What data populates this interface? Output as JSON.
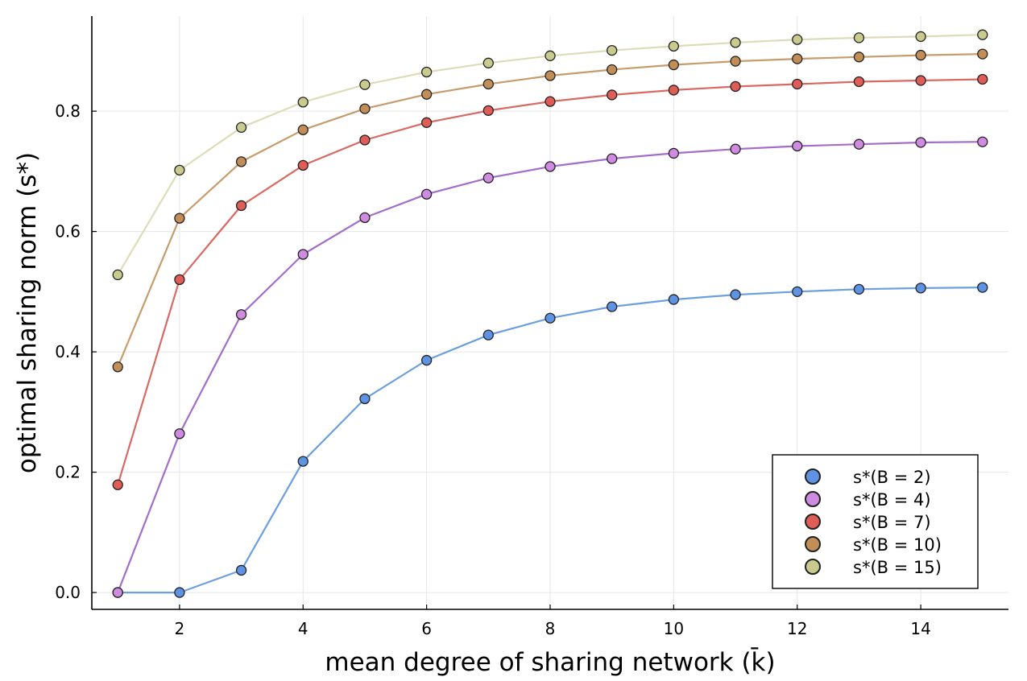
{
  "chart_data": {
    "type": "scatter",
    "title": "",
    "xlabel": "mean degree of sharing network (k̄)",
    "ylabel": "optimal sharing norm (s*)",
    "xlim": [
      0.58,
      15.42
    ],
    "ylim": [
      -0.028,
      0.958
    ],
    "x_ticks": [
      2,
      4,
      6,
      8,
      10,
      12,
      14
    ],
    "x_tick_labels": [
      "2",
      "4",
      "6",
      "8",
      "10",
      "12",
      "14"
    ],
    "y_ticks": [
      0.0,
      0.2,
      0.4,
      0.6,
      0.8
    ],
    "y_tick_labels": [
      "0.0",
      "0.2",
      "0.4",
      "0.6",
      "0.8"
    ],
    "grid": true,
    "legend_position": "bottom-right",
    "x": [
      1,
      2,
      3,
      4,
      5,
      6,
      7,
      8,
      9,
      10,
      11,
      12,
      13,
      14,
      15
    ],
    "series": [
      {
        "name": "s*(B = 2)",
        "color": "#6C9FE0",
        "marker_color": "#5E93E3",
        "values": [
          0.0,
          0.0,
          0.037,
          0.218,
          0.322,
          0.386,
          0.428,
          0.456,
          0.475,
          0.487,
          0.495,
          0.5,
          0.504,
          0.506,
          0.507
        ]
      },
      {
        "name": "s*(B = 4)",
        "color": "#A36DC9",
        "marker_color": "#CF8BE0",
        "values": [
          0.0,
          0.264,
          0.462,
          0.562,
          0.623,
          0.662,
          0.689,
          0.708,
          0.721,
          0.73,
          0.737,
          0.742,
          0.745,
          0.748,
          0.749
        ]
      },
      {
        "name": "s*(B = 7)",
        "color": "#D86A63",
        "marker_color": "#DE5D57",
        "values": [
          0.179,
          0.52,
          0.643,
          0.71,
          0.752,
          0.781,
          0.801,
          0.816,
          0.827,
          0.835,
          0.841,
          0.845,
          0.849,
          0.851,
          0.853
        ]
      },
      {
        "name": "s*(B = 10)",
        "color": "#C79C6C",
        "marker_color": "#C28E57",
        "values": [
          0.375,
          0.622,
          0.716,
          0.769,
          0.804,
          0.828,
          0.845,
          0.859,
          0.869,
          0.877,
          0.883,
          0.887,
          0.89,
          0.893,
          0.895
        ]
      },
      {
        "name": "s*(B = 15)",
        "color": "#DCDDB8",
        "marker_color": "#C9CB8E",
        "values": [
          0.528,
          0.702,
          0.773,
          0.815,
          0.844,
          0.865,
          0.88,
          0.892,
          0.901,
          0.908,
          0.914,
          0.919,
          0.922,
          0.924,
          0.927
        ]
      }
    ]
  }
}
